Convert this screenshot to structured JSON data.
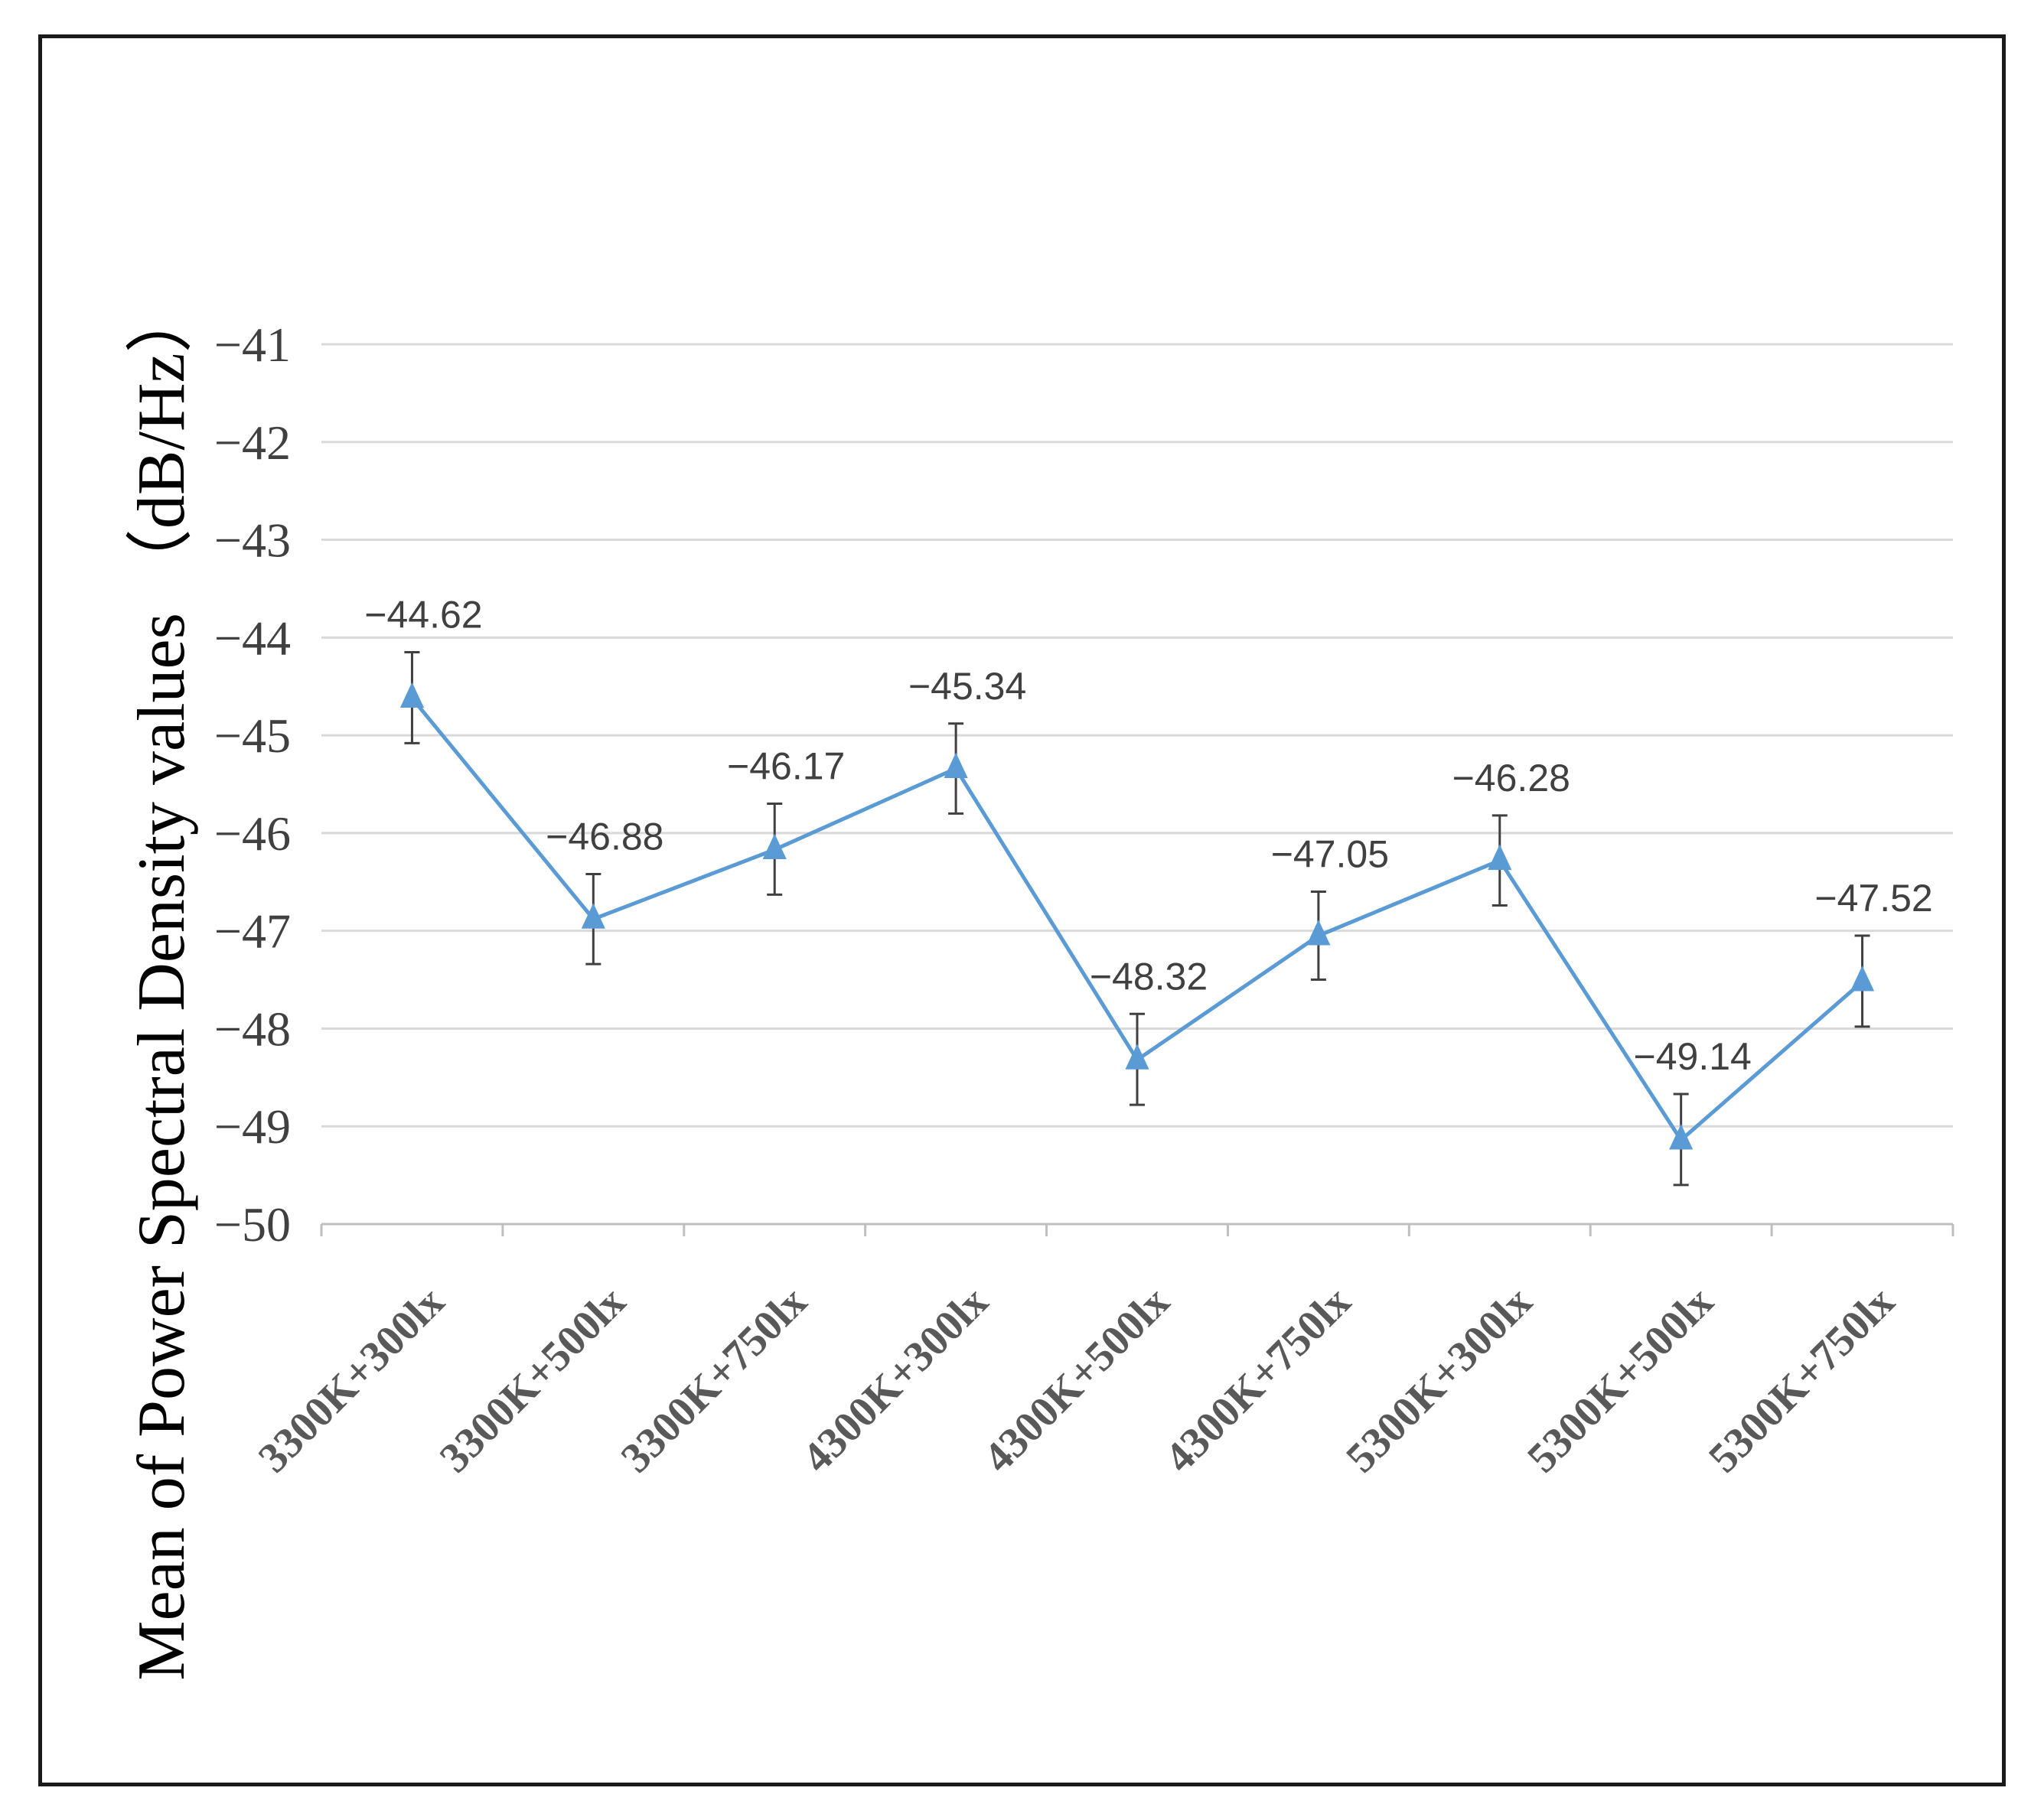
{
  "chart_data": {
    "type": "line",
    "title": "",
    "ylabel": "Mean of Power Spectral Density values （dB/Hz）",
    "xlabel": "",
    "ylim": [
      -50,
      -41
    ],
    "yticks": [
      -41,
      -42,
      -43,
      -44,
      -45,
      -46,
      -47,
      -48,
      -49,
      -50
    ],
    "grid": true,
    "legend": "none",
    "categories": [
      "3300K+300lx",
      "3300K+500lx",
      "3300K+750lx",
      "4300K+300lx",
      "4300K+500lx",
      "4300K+750lx",
      "5300K+300lx",
      "5300K+500lx",
      "5300K+750lx"
    ],
    "series": [
      {
        "values": [
          -44.62,
          -46.88,
          -46.17,
          -45.34,
          -48.32,
          -47.05,
          -46.28,
          -49.14,
          -47.52
        ],
        "labels": [
          "−44.62",
          "−46.88",
          "−46.17",
          "−45.34",
          "−48.32",
          "−47.05",
          "−46.28",
          "−49.14",
          "−47.52"
        ],
        "error_upper": [
          -44.15,
          -46.42,
          -45.7,
          -44.88,
          -47.85,
          -46.6,
          -45.82,
          -48.67,
          -47.05
        ],
        "error_lower": [
          -45.08,
          -47.34,
          -46.63,
          -45.8,
          -48.78,
          -47.5,
          -46.74,
          -49.6,
          -47.98
        ],
        "color": "#5b9bd5",
        "marker": "triangle"
      }
    ],
    "colors": {
      "grid": "#d9d9d9",
      "axis": "#bfbfbf",
      "errorbar": "#404040"
    }
  }
}
